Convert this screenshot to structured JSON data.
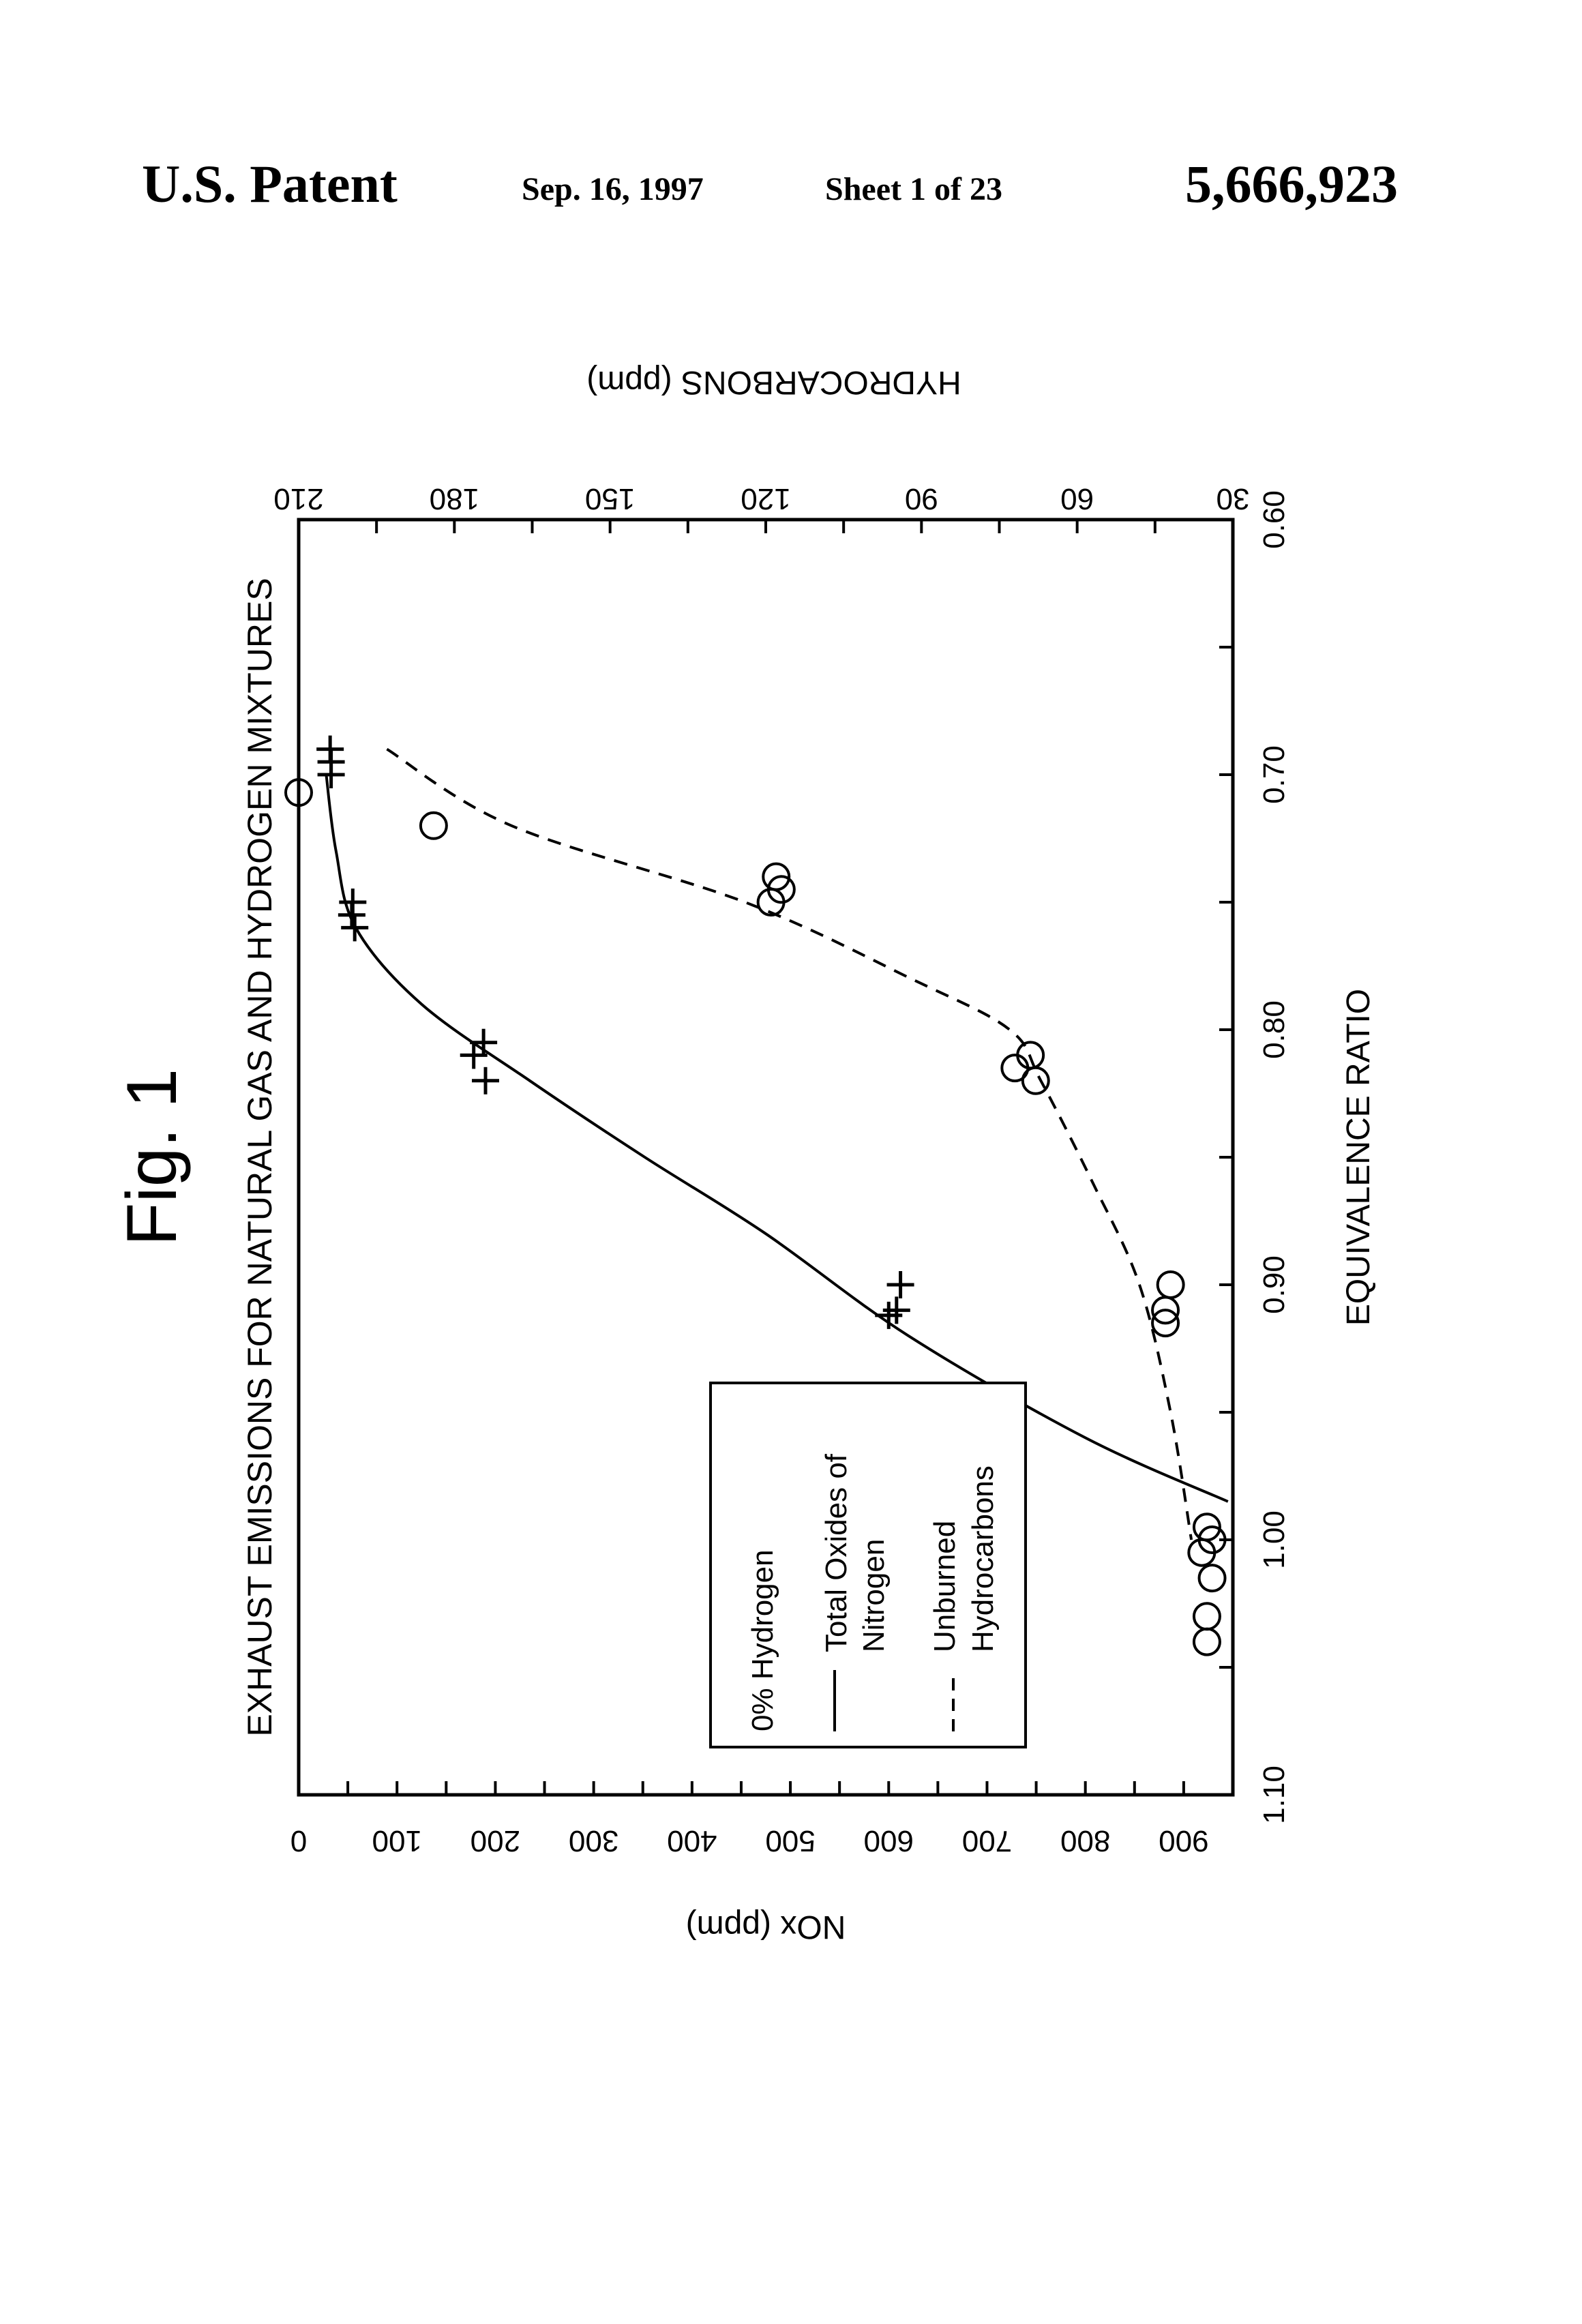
{
  "header": {
    "left": "U.S. Patent",
    "date": "Sep. 16, 1997",
    "sheet": "Sheet 1 of 23",
    "number": "5,666,923"
  },
  "figure_label": "Fig. 1",
  "chart_data": {
    "type": "line",
    "title": "EXHAUST EMISSIONS FOR NATURAL GAS AND HYDROGEN MIXTURES",
    "xlabel": "EQUIVALENCE RATIO",
    "ylabel_left": "NOx (ppm)",
    "ylabel_right": "HYDROCARBONS (ppm)",
    "xlim": [
      0.6,
      1.1
    ],
    "ylim_left": [
      0,
      950
    ],
    "ylim_right": [
      30,
      210
    ],
    "x_ticks": [
      "0.60",
      "0.70",
      "0.80",
      "0.90",
      "1.00",
      "1.10"
    ],
    "y_left_ticks": [
      "0",
      "100",
      "200",
      "300",
      "400",
      "500",
      "600",
      "700",
      "800",
      "900"
    ],
    "y_right_ticks": [
      "30",
      "60",
      "90",
      "120",
      "150",
      "180",
      "210"
    ],
    "legend": {
      "title": "0% Hydrogen",
      "entries": [
        {
          "label_line1": "Total Oxides of",
          "label_line2": "Nitrogen",
          "style": "solid"
        },
        {
          "label_line1": "Unburned",
          "label_line2": "Hydrocarbons",
          "style": "dashed"
        }
      ]
    },
    "series": [
      {
        "name": "Total Oxides of Nitrogen",
        "axis": "left",
        "marker": "plus",
        "line": "solid",
        "points": [
          [
            0.9,
            612
          ],
          [
            0.91,
            608
          ],
          [
            0.912,
            600
          ],
          [
            0.805,
            188
          ],
          [
            0.81,
            178
          ],
          [
            0.82,
            190
          ],
          [
            0.75,
            55
          ],
          [
            0.755,
            54
          ],
          [
            0.76,
            57
          ],
          [
            0.69,
            32
          ],
          [
            0.695,
            33
          ],
          [
            0.7,
            33
          ]
        ],
        "fit": [
          [
            0.7,
            28
          ],
          [
            0.73,
            38
          ],
          [
            0.76,
            58
          ],
          [
            0.79,
            125
          ],
          [
            0.82,
            235
          ],
          [
            0.85,
            352
          ],
          [
            0.88,
            475
          ],
          [
            0.92,
            620
          ],
          [
            0.96,
            800
          ],
          [
            0.985,
            945
          ]
        ]
      },
      {
        "name": "Unburned Hydrocarbons",
        "axis": "right",
        "marker": "circle",
        "line": "dashed",
        "points": [
          [
            0.707,
            210
          ],
          [
            0.72,
            184
          ],
          [
            0.74,
            118
          ],
          [
            0.745,
            117
          ],
          [
            0.75,
            119
          ],
          [
            0.81,
            69
          ],
          [
            0.815,
            72
          ],
          [
            0.82,
            68
          ],
          [
            0.9,
            42
          ],
          [
            0.91,
            43
          ],
          [
            0.915,
            43
          ],
          [
            0.995,
            35
          ],
          [
            1.0,
            34
          ],
          [
            1.005,
            36
          ],
          [
            1.015,
            34
          ],
          [
            1.03,
            35
          ],
          [
            1.04,
            35
          ]
        ],
        "fit": [
          [
            0.69,
            193
          ],
          [
            0.72,
            169
          ],
          [
            0.75,
            124
          ],
          [
            0.78,
            92
          ],
          [
            0.8,
            73
          ],
          [
            0.82,
            67
          ],
          [
            0.86,
            57
          ],
          [
            0.9,
            48
          ],
          [
            0.95,
            42
          ],
          [
            1.0,
            38
          ]
        ]
      }
    ]
  }
}
